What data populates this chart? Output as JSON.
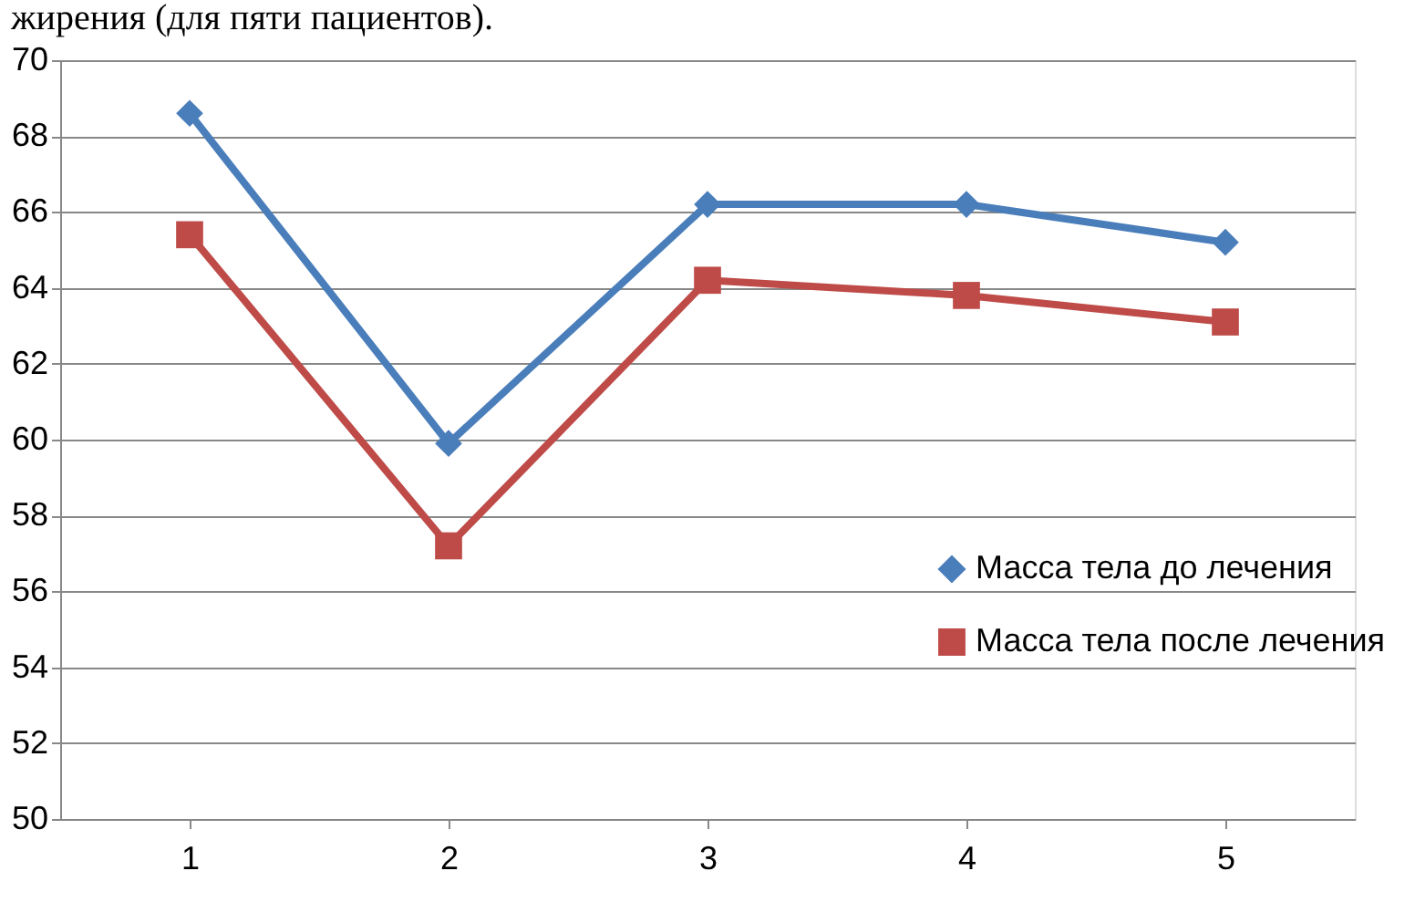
{
  "chart_data": {
    "type": "line",
    "title": "жирения (для пяти пациентов).",
    "categories": [
      "1",
      "2",
      "3",
      "4",
      "5"
    ],
    "series": [
      {
        "name": "Масса тела до лечения",
        "color": "#4a7ebb",
        "marker": "diamond",
        "values": [
          68.6,
          59.9,
          66.2,
          66.2,
          65.2
        ]
      },
      {
        "name": "Масса тела после лечения",
        "color": "#be4b48",
        "marker": "square",
        "values": [
          65.4,
          57.2,
          64.2,
          63.8,
          63.1
        ]
      }
    ],
    "ylim": [
      50,
      70
    ],
    "yticks": [
      50,
      52,
      54,
      56,
      58,
      60,
      62,
      64,
      66,
      68,
      70
    ],
    "grid": "y",
    "legend": "right",
    "line_style": "solid"
  }
}
